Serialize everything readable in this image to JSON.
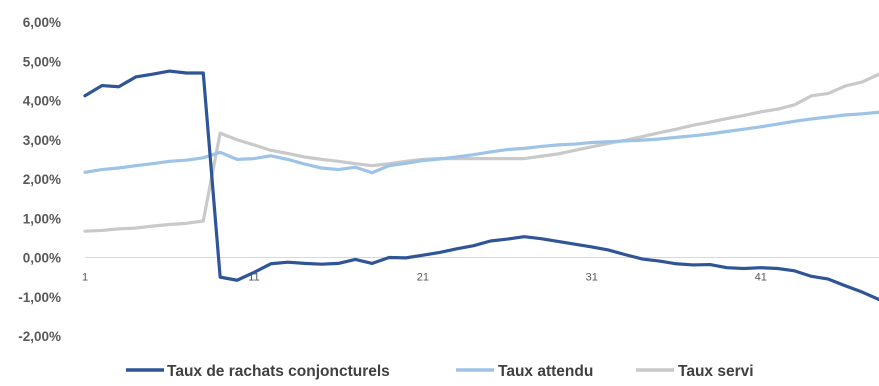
{
  "chart_data": {
    "type": "line",
    "title": "",
    "xlabel": "",
    "ylabel": "",
    "x": [
      1,
      2,
      3,
      4,
      5,
      6,
      7,
      8,
      9,
      10,
      11,
      12,
      13,
      14,
      15,
      16,
      17,
      18,
      19,
      20,
      21,
      22,
      23,
      24,
      25,
      26,
      27,
      28,
      29,
      30,
      31,
      32,
      33,
      34,
      35,
      36,
      37,
      38,
      39,
      40,
      41,
      42,
      43,
      44,
      45,
      46,
      47,
      48
    ],
    "x_tick_labels": [
      "1",
      "11",
      "21",
      "31",
      "41"
    ],
    "x_tick_values": [
      1,
      11,
      21,
      31,
      41
    ],
    "ylim": [
      -2.0,
      6.0
    ],
    "y_tick_values": [
      6,
      5,
      4,
      3,
      2,
      1,
      0,
      -1,
      -2
    ],
    "y_tick_labels": [
      "6,00%",
      "5,00%",
      "4,00%",
      "3,00%",
      "2,00%",
      "1,00%",
      "0,00%",
      "-1,00%",
      "-2,00%"
    ],
    "grid": false,
    "legend_position": "bottom",
    "series": [
      {
        "name": "Taux de rachats conjoncturels",
        "color": "#2F5597",
        "values": [
          4.12,
          4.38,
          4.35,
          4.6,
          4.67,
          4.75,
          4.7,
          4.7,
          -0.5,
          -0.58,
          -0.38,
          -0.16,
          -0.12,
          -0.15,
          -0.17,
          -0.15,
          -0.05,
          -0.15,
          0.0,
          -0.01,
          0.06,
          0.13,
          0.22,
          0.3,
          0.42,
          0.47,
          0.53,
          0.48,
          0.41,
          0.34,
          0.27,
          0.19,
          0.07,
          -0.04,
          -0.09,
          -0.16,
          -0.19,
          -0.18,
          -0.26,
          -0.28,
          -0.26,
          -0.28,
          -0.34,
          -0.48,
          -0.55,
          -0.72,
          -0.88,
          -1.07
        ]
      },
      {
        "name": "Taux attendu",
        "color": "#9DC3E6",
        "values": [
          2.17,
          2.24,
          2.28,
          2.34,
          2.39,
          2.45,
          2.48,
          2.54,
          2.68,
          2.5,
          2.52,
          2.59,
          2.5,
          2.38,
          2.28,
          2.24,
          2.3,
          2.16,
          2.34,
          2.4,
          2.47,
          2.51,
          2.56,
          2.62,
          2.69,
          2.75,
          2.78,
          2.83,
          2.87,
          2.89,
          2.93,
          2.95,
          2.97,
          2.99,
          3.02,
          3.06,
          3.1,
          3.15,
          3.21,
          3.27,
          3.33,
          3.4,
          3.47,
          3.53,
          3.58,
          3.63,
          3.66,
          3.7
        ]
      },
      {
        "name": "Taux servi",
        "color": "#C9C9C9",
        "values": [
          0.67,
          0.69,
          0.73,
          0.75,
          0.8,
          0.84,
          0.87,
          0.93,
          3.17,
          3.0,
          2.87,
          2.73,
          2.65,
          2.56,
          2.5,
          2.45,
          2.39,
          2.34,
          2.39,
          2.45,
          2.5,
          2.52,
          2.52,
          2.52,
          2.52,
          2.52,
          2.52,
          2.58,
          2.64,
          2.73,
          2.82,
          2.91,
          2.99,
          3.08,
          3.18,
          3.27,
          3.37,
          3.45,
          3.54,
          3.62,
          3.71,
          3.78,
          3.89,
          4.12,
          4.18,
          4.37,
          4.47,
          4.67
        ]
      }
    ]
  }
}
